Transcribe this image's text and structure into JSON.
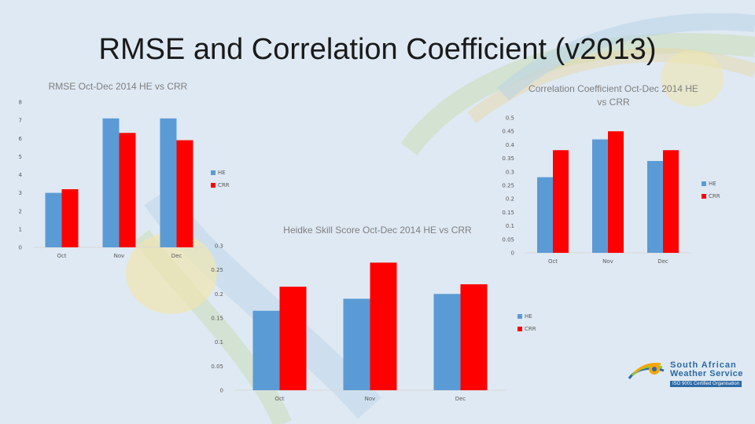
{
  "slide": {
    "title": "RMSE and Correlation Coefficient (v2013)"
  },
  "logo": {
    "line1": "South African",
    "line2": "Weather Service",
    "iso": "ISO 9001 Certified Organisation"
  },
  "colors": {
    "HE": "#5b9bd5",
    "CRR": "#ff0000",
    "background": "#dfe9f3"
  },
  "chart_data": [
    {
      "id": "rmse",
      "type": "bar",
      "title": "RMSE Oct-Dec 2014 HE vs CRR",
      "categories": [
        "Oct",
        "Nov",
        "Dec"
      ],
      "series": [
        {
          "name": "HE",
          "values": [
            3.0,
            7.1,
            7.1
          ]
        },
        {
          "name": "CRR",
          "values": [
            3.2,
            6.3,
            5.9
          ]
        }
      ],
      "ylim": [
        0,
        8
      ],
      "yticks": [
        "0",
        "1",
        "2",
        "3",
        "4",
        "5",
        "6",
        "7",
        "8"
      ],
      "grid": false,
      "legend": "right"
    },
    {
      "id": "corr",
      "type": "bar",
      "title": "Correlation Coefficient Oct-Dec 2014 HE vs CRR",
      "categories": [
        "Oct",
        "Nov",
        "Dec"
      ],
      "series": [
        {
          "name": "HE",
          "values": [
            0.28,
            0.42,
            0.34
          ]
        },
        {
          "name": "CRR",
          "values": [
            0.38,
            0.45,
            0.38
          ]
        }
      ],
      "ylim": [
        0,
        0.5
      ],
      "yticks": [
        "0",
        "0.05",
        "0.1",
        "0.15",
        "0.2",
        "0.25",
        "0.3",
        "0.35",
        "0.4",
        "0.45",
        "0.5"
      ],
      "grid": false,
      "legend": "right"
    },
    {
      "id": "hss",
      "type": "bar",
      "title": "Heidke Skill Score Oct-Dec 2014 HE vs CRR",
      "categories": [
        "Oct",
        "Nov",
        "Dec"
      ],
      "series": [
        {
          "name": "HE",
          "values": [
            0.165,
            0.19,
            0.2
          ]
        },
        {
          "name": "CRR",
          "values": [
            0.215,
            0.265,
            0.22
          ]
        }
      ],
      "ylim": [
        0,
        0.3
      ],
      "yticks": [
        "0",
        "0.05",
        "0.1",
        "0.15",
        "0.2",
        "0.25",
        "0.3"
      ],
      "grid": false,
      "legend": "right"
    }
  ]
}
